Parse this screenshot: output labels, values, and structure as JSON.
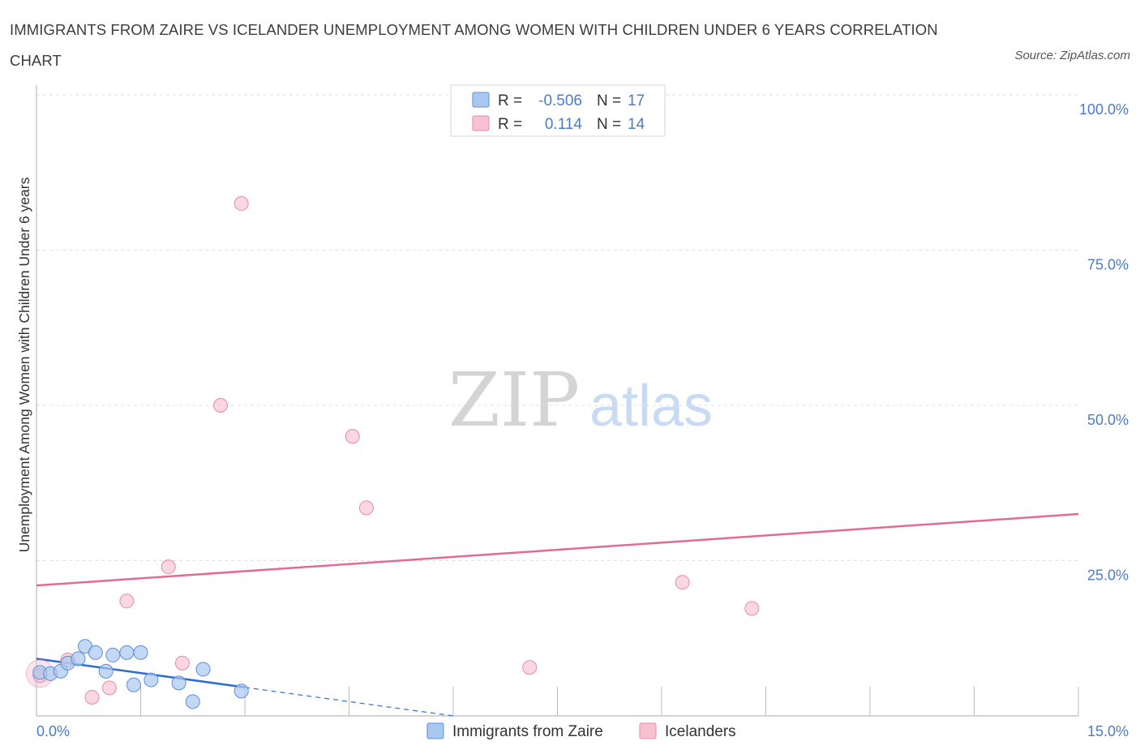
{
  "title": "IMMIGRANTS FROM ZAIRE VS ICELANDER UNEMPLOYMENT AMONG WOMEN WITH CHILDREN UNDER 6 YEARS CORRELATION CHART",
  "source": "Source: ZipAtlas.com",
  "watermark": {
    "zip": "ZIP",
    "atlas": "atlas"
  },
  "colors": {
    "zaire_fill": "#a9c8f0",
    "zaire_stroke": "#5b8fd6",
    "zaire_line": "#2f6ccf",
    "ice_fill": "#f7c1d1",
    "ice_stroke": "#e88aa6",
    "ice_line": "#e36b93",
    "axis_text": "#4a7cc9",
    "grid": "#dddddd"
  },
  "stats": [
    {
      "r_label": "R =",
      "r": "-0.506",
      "n_label": "N =",
      "n": "17"
    },
    {
      "r_label": "R =",
      "r": "0.114",
      "n_label": "N =",
      "n": "14"
    }
  ],
  "chart_data": {
    "type": "scatter",
    "title": "IMMIGRANTS FROM ZAIRE VS ICELANDER UNEMPLOYMENT AMONG WOMEN WITH CHILDREN UNDER 6 YEARS CORRELATION CHART",
    "xlabel": "",
    "ylabel": "Unemployment Among Women with Children Under 6 years",
    "xlim": [
      0,
      15
    ],
    "ylim": [
      0,
      100
    ],
    "x_tick_labels": [
      "0.0%",
      "15.0%"
    ],
    "y_ticks": [
      25,
      50,
      75,
      100
    ],
    "y_tick_labels": [
      "25.0%",
      "50.0%",
      "75.0%",
      "100.0%"
    ],
    "grid": true,
    "legend_position": "bottom-center",
    "series": [
      {
        "name": "Immigrants from Zaire",
        "r": -0.506,
        "n": 17,
        "points": [
          [
            0.05,
            7.0
          ],
          [
            0.2,
            6.8
          ],
          [
            0.35,
            7.2
          ],
          [
            0.45,
            8.5
          ],
          [
            0.6,
            9.2
          ],
          [
            0.7,
            11.2
          ],
          [
            0.85,
            10.2
          ],
          [
            1.0,
            7.2
          ],
          [
            1.1,
            9.8
          ],
          [
            1.3,
            10.2
          ],
          [
            1.4,
            5.0
          ],
          [
            1.5,
            10.2
          ],
          [
            1.65,
            5.8
          ],
          [
            2.05,
            5.3
          ],
          [
            2.25,
            2.3
          ],
          [
            2.4,
            7.5
          ],
          [
            2.95,
            4.0
          ]
        ],
        "trend": {
          "x0": 0,
          "y0": 9.2,
          "x1": 3.0,
          "y1": 4.6,
          "dashed_to_x": 6.0,
          "dashed_to_y": 0.0
        }
      },
      {
        "name": "Icelanders",
        "r": 0.114,
        "n": 14,
        "points": [
          [
            0.05,
            6.5
          ],
          [
            0.45,
            9.0
          ],
          [
            0.8,
            3.0
          ],
          [
            1.05,
            4.5
          ],
          [
            1.3,
            18.5
          ],
          [
            1.9,
            24.0
          ],
          [
            2.1,
            8.5
          ],
          [
            2.65,
            50.0
          ],
          [
            2.95,
            82.5
          ],
          [
            4.55,
            45.0
          ],
          [
            4.75,
            33.5
          ],
          [
            7.1,
            7.8
          ],
          [
            9.3,
            21.5
          ],
          [
            10.3,
            17.3
          ]
        ],
        "trend": {
          "x0": 0,
          "y0": 21.0,
          "x1": 15,
          "y1": 32.5
        }
      }
    ]
  }
}
